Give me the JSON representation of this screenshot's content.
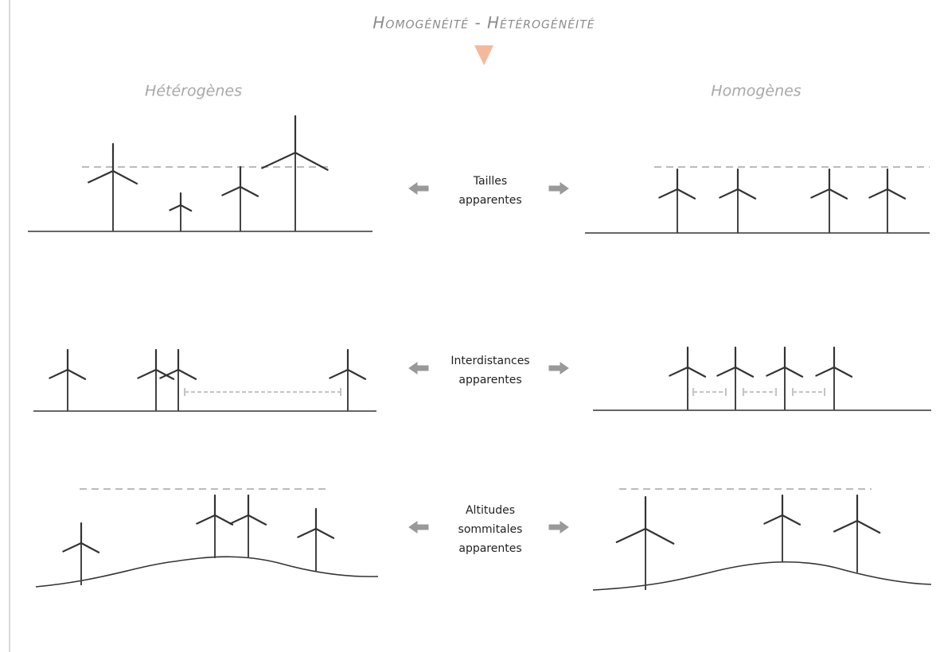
{
  "title": "Homogénéité - Hétérogénéité",
  "columns": {
    "left": "Hétérogènes",
    "right": "Homogènes"
  },
  "rows": [
    {
      "label": [
        "Tailles",
        "apparentes"
      ]
    },
    {
      "label": [
        "Interdistances",
        "apparentes"
      ]
    },
    {
      "label": [
        "Altitudes",
        "sommitales",
        "apparentes"
      ]
    }
  ]
}
